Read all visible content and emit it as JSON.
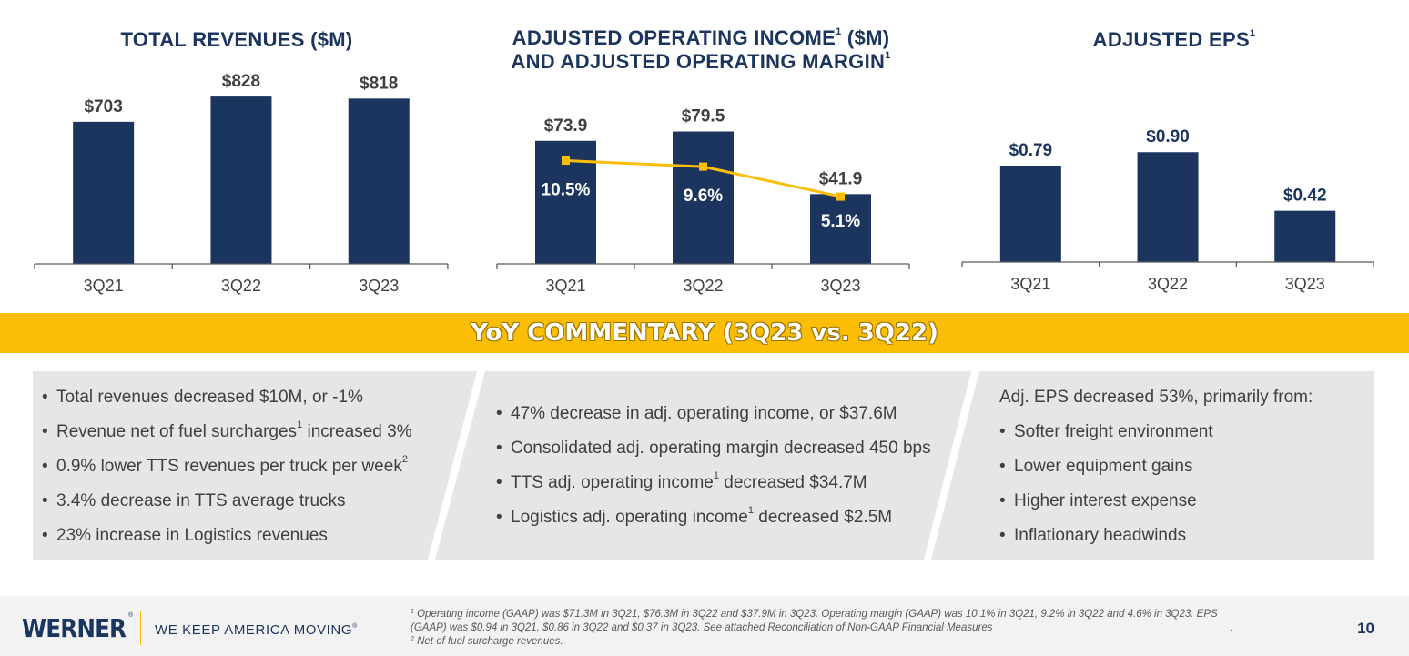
{
  "chart_data": [
    {
      "type": "bar",
      "title": "TOTAL REVENUES ($M)",
      "categories": [
        "3Q21",
        "3Q22",
        "3Q23"
      ],
      "values": [
        703,
        828,
        818
      ],
      "value_labels": [
        "$703",
        "$828",
        "$818"
      ],
      "ylim": [
        0,
        950
      ],
      "grid": false,
      "bar_color": "#1c355e"
    },
    {
      "type": "bar",
      "title": "ADJUSTED OPERATING INCOME",
      "title_sup": "1",
      "title_rest": " ($M)",
      "title_line2": "AND ADJUSTED OPERATING MARGIN",
      "title_line2_sup": "1",
      "categories": [
        "3Q21",
        "3Q22",
        "3Q23"
      ],
      "values": [
        73.9,
        79.5,
        41.9
      ],
      "value_labels": [
        "$73.9",
        "$79.5",
        "$41.9"
      ],
      "ylim": [
        0,
        100
      ],
      "grid": false,
      "bar_color": "#1c355e",
      "series": [
        {
          "type": "line",
          "values": [
            10.5,
            9.6,
            5.1
          ],
          "value_labels": [
            "10.5%",
            "9.6%",
            "5.1%"
          ],
          "color": "#fbbe05",
          "ylim": [
            -5,
            20
          ]
        }
      ]
    },
    {
      "type": "bar",
      "title": "ADJUSTED EPS",
      "title_sup": "1",
      "categories": [
        "3Q21",
        "3Q22",
        "3Q23"
      ],
      "values": [
        0.79,
        0.9,
        0.42
      ],
      "value_labels": [
        "$0.79",
        "$0.90",
        "$0.42"
      ],
      "ylim": [
        0,
        1.15
      ],
      "grid": false,
      "bar_color": "#1c355e"
    }
  ],
  "banner": {
    "title": "YoY COMMENTARY (3Q23 vs. 3Q22)",
    "color": "#fbbe05"
  },
  "commentary": {
    "left": [
      {
        "text": "Total revenues decreased $10M, or -1%",
        "sup": "",
        "after": ""
      },
      {
        "text": "Revenue net of fuel surcharges",
        "sup": "1",
        "after": " increased 3%"
      },
      {
        "text": "0.9% lower TTS revenues per truck per week",
        "sup": "2",
        "after": ""
      },
      {
        "text": "3.4% decrease in TTS average trucks",
        "sup": "",
        "after": ""
      },
      {
        "text": "23% increase in Logistics revenues",
        "sup": "",
        "after": ""
      }
    ],
    "middle": [
      {
        "text": "47% decrease in adj. operating income, or $37.6M",
        "sup": "",
        "after": ""
      },
      {
        "text": "Consolidated adj. operating margin decreased 450 bps",
        "sup": "",
        "after": ""
      },
      {
        "text": "TTS adj. operating income",
        "sup": "1",
        "after": " decreased $34.7M"
      },
      {
        "text": "Logistics adj. operating income",
        "sup": "1",
        "after": " decreased $2.5M"
      }
    ],
    "right_heading": "Adj. EPS decreased 53%, primarily from:",
    "right": [
      {
        "text": "Softer freight environment",
        "sup": "",
        "after": ""
      },
      {
        "text": "Lower equipment gains",
        "sup": "",
        "after": ""
      },
      {
        "text": "Higher interest expense",
        "sup": "",
        "after": ""
      },
      {
        "text": "Inflationary headwinds",
        "sup": "",
        "after": ""
      }
    ],
    "bullet": "•"
  },
  "footer": {
    "logo": "WERNER",
    "logo_mark": "®",
    "tagline": "WE KEEP AMERICA MOVING",
    "tagline_mark": "®",
    "footnote1_num": "1",
    "footnote1": " Operating income (GAAP) was $71.3M in 3Q21, $76.3M in 3Q22 and $37.9M in 3Q23. Operating margin (GAAP) was 10.1% in 3Q21, 9.2% in 3Q22 and 4.6% in 3Q23. EPS (GAAP) was $0.94 in 3Q21, $0.86 in 3Q22 and $0.37 in 3Q23. See attached Reconciliation of Non-GAAP Financial Measures",
    "footnote2_num": "2",
    "footnote2": " Net of fuel surcharge revenues.",
    "trailing_mark": ".",
    "page_number": "10"
  }
}
